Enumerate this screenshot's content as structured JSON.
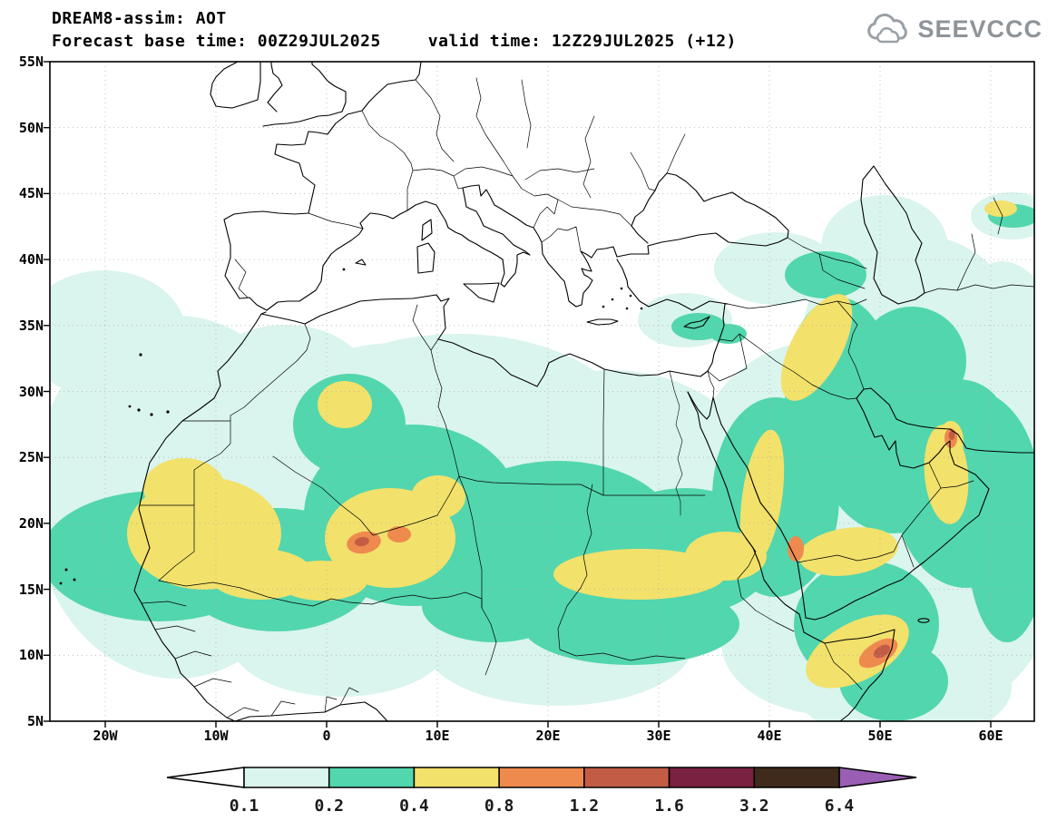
{
  "header": {
    "title": "DREAM8-assim: AOT",
    "forecast_base": "Forecast base time: 00Z29JUL2025",
    "valid_time": "valid time: 12Z29JUL2025 (+12)"
  },
  "logo": {
    "text": "SEEVCCC"
  },
  "map": {
    "lat_labels": [
      "55N",
      "50N",
      "45N",
      "40N",
      "35N",
      "30N",
      "25N",
      "20N",
      "15N",
      "10N",
      "5N"
    ],
    "lon_labels": [
      "20W",
      "10W",
      "0",
      "10E",
      "20E",
      "30E",
      "40E",
      "50E",
      "60E"
    ]
  },
  "colorbar": {
    "levels": [
      "0.1",
      "0.2",
      "0.4",
      "0.8",
      "1.2",
      "1.6",
      "3.2",
      "6.4"
    ],
    "arrow_left_color": "#ffffff",
    "arrow_right_color": "#9a5fb5",
    "segment_colors": [
      "#daf4ee",
      "#52d6ad",
      "#f2e16b",
      "#ef8a4f",
      "#c35c45",
      "#7a2040",
      "#402a1c"
    ],
    "fill_cyan": "#daf4ee",
    "fill_teal": "#52d6ad",
    "fill_yellow": "#f2e16b",
    "fill_orange": "#ef8a4f",
    "fill_brick": "#c35c45"
  }
}
